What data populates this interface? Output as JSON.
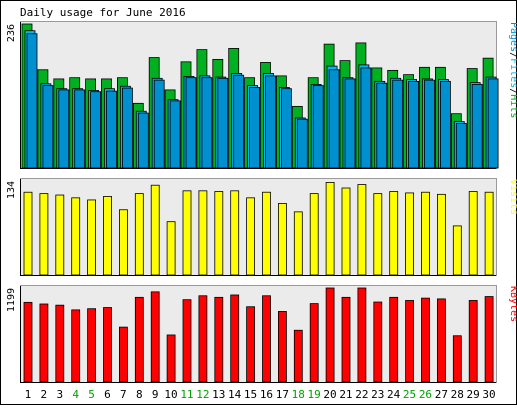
{
  "chart_data": {
    "type": "bar",
    "title": "Daily usage for June 2016",
    "categories": [
      "1",
      "2",
      "3",
      "4",
      "5",
      "6",
      "7",
      "8",
      "9",
      "10",
      "11",
      "12",
      "13",
      "14",
      "15",
      "16",
      "17",
      "18",
      "19",
      "20",
      "21",
      "22",
      "23",
      "24",
      "25",
      "26",
      "27",
      "28",
      "29",
      "30"
    ],
    "weekend_days": [
      "4",
      "5",
      "11",
      "12",
      "18",
      "19",
      "25",
      "26"
    ],
    "colors": {
      "background": "#ffffff",
      "panel": "#ebebeb",
      "hits": "#00b020",
      "files": "#00b8f0",
      "pages": "#0090d0",
      "visits": "#ffff00",
      "kbytes": "#ff0000",
      "weekend_label": "#00a000",
      "weekday_label": "#000000",
      "axis_label_text": "#000000"
    },
    "panels": [
      {
        "id": "hits-files-pages",
        "ymax_label": "236",
        "ymax": 236,
        "legend": [
          {
            "text": "Pages",
            "color": "#0090d0"
          },
          {
            "text": "/",
            "color": "#000000"
          },
          {
            "text": "Files",
            "color": "#00b8f0"
          },
          {
            "text": "/",
            "color": "#000000"
          },
          {
            "text": "Hits",
            "color": "#00b020"
          }
        ],
        "series": [
          {
            "name": "Hits",
            "values": [
              236,
              161,
              146,
              148,
              146,
              146,
              148,
              106,
              181,
              128,
              174,
              194,
              178,
              196,
              148,
              173,
              151,
              101,
              148,
              203,
              176,
              205,
              164,
              160,
              153,
              165,
              165,
              89,
              163,
              180
            ]
          },
          {
            "name": "Files",
            "values": [
              225,
              138,
              130,
              130,
              127,
              130,
              134,
              93,
              147,
              112,
              150,
              151,
              149,
              155,
              135,
              155,
              132,
              82,
              137,
              167,
              148,
              169,
              142,
              147,
              145,
              146,
              145,
              76,
              140,
              149
            ]
          },
          {
            "name": "Pages",
            "values": [
              220,
              135,
              128,
              128,
              125,
              126,
              131,
              90,
              144,
              110,
              148,
              148,
              147,
              152,
              132,
              151,
              130,
              80,
              135,
              161,
              146,
              164,
              139,
              144,
              142,
              144,
              142,
              73,
              137,
              146
            ]
          }
        ]
      },
      {
        "id": "visits",
        "ymax_label": "134",
        "ymax": 134,
        "legend": [
          {
            "text": "Visits",
            "color": "#ffff00"
          }
        ],
        "series": [
          {
            "name": "Visits",
            "values": [
              118,
              116,
              114,
              110,
              107,
              112,
              93,
              116,
              128,
              76,
              120,
              120,
              119,
              120,
              110,
              118,
              102,
              90,
              116,
              132,
              124,
              129,
              116,
              119,
              117,
              118,
              115,
              70,
              119,
              118
            ]
          }
        ]
      },
      {
        "id": "kbytes",
        "ymax_label": "1199",
        "ymax": 1199,
        "legend": [
          {
            "text": "KBytes",
            "color": "#ff0000"
          }
        ],
        "series": [
          {
            "name": "KBytes",
            "values": [
              1016,
              995,
              980,
              920,
              935,
              950,
              700,
              1080,
              1150,
              600,
              1050,
              1100,
              1080,
              1110,
              960,
              1100,
              900,
              660,
              1000,
              1199,
              1080,
              1199,
              1020,
              1080,
              1040,
              1070,
              1060,
              590,
              1040,
              1090
            ]
          }
        ]
      }
    ]
  }
}
